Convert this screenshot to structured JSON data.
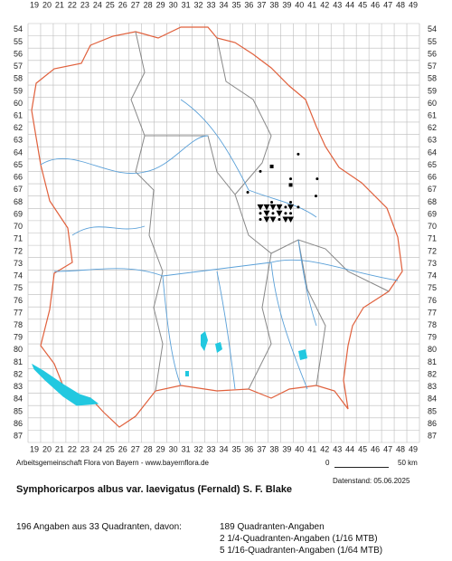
{
  "map": {
    "columns": [
      19,
      20,
      21,
      22,
      23,
      24,
      25,
      26,
      27,
      28,
      29,
      30,
      31,
      32,
      33,
      34,
      35,
      36,
      37,
      38,
      39,
      40,
      41,
      42,
      43,
      44,
      45,
      46,
      47,
      48,
      49
    ],
    "rows": [
      54,
      55,
      56,
      57,
      58,
      59,
      60,
      61,
      62,
      63,
      64,
      65,
      66,
      67,
      68,
      69,
      70,
      71,
      72,
      73,
      74,
      75,
      76,
      77,
      78,
      79,
      80,
      81,
      82,
      83,
      84,
      85,
      86,
      87
    ],
    "markers": [
      {
        "col": 39.9,
        "row": 64.1,
        "symbol": "dot"
      },
      {
        "col": 36.9,
        "row": 65.5,
        "symbol": "dot"
      },
      {
        "col": 37.8,
        "row": 65.1,
        "symbol": "square"
      },
      {
        "col": 39.3,
        "row": 66.1,
        "symbol": "dot"
      },
      {
        "col": 39.3,
        "row": 66.6,
        "symbol": "square"
      },
      {
        "col": 41.4,
        "row": 66.1,
        "symbol": "dot"
      },
      {
        "col": 35.9,
        "row": 67.2,
        "symbol": "dot"
      },
      {
        "col": 41.3,
        "row": 67.5,
        "symbol": "dot"
      },
      {
        "col": 37.8,
        "row": 68.0,
        "symbol": "dot"
      },
      {
        "col": 39.3,
        "row": 68.0,
        "symbol": "dot"
      },
      {
        "col": 36.9,
        "row": 68.4,
        "symbol": "triangle"
      },
      {
        "col": 37.4,
        "row": 68.4,
        "symbol": "triangle"
      },
      {
        "col": 37.9,
        "row": 68.4,
        "symbol": "triangle"
      },
      {
        "col": 38.4,
        "row": 68.4,
        "symbol": "triangle"
      },
      {
        "col": 38.9,
        "row": 68.4,
        "symbol": "dot"
      },
      {
        "col": 39.3,
        "row": 68.4,
        "symbol": "triangle"
      },
      {
        "col": 39.9,
        "row": 68.4,
        "symbol": "dot"
      },
      {
        "col": 36.9,
        "row": 68.9,
        "symbol": "dot"
      },
      {
        "col": 37.4,
        "row": 68.9,
        "symbol": "triangle"
      },
      {
        "col": 37.9,
        "row": 68.9,
        "symbol": "dot"
      },
      {
        "col": 38.4,
        "row": 68.9,
        "symbol": "triangle"
      },
      {
        "col": 38.9,
        "row": 68.9,
        "symbol": "dot"
      },
      {
        "col": 39.3,
        "row": 68.9,
        "symbol": "dot"
      },
      {
        "col": 36.9,
        "row": 69.4,
        "symbol": "dot"
      },
      {
        "col": 37.4,
        "row": 69.4,
        "symbol": "triangle"
      },
      {
        "col": 37.9,
        "row": 69.4,
        "symbol": "triangle"
      },
      {
        "col": 38.4,
        "row": 69.4,
        "symbol": "dot"
      },
      {
        "col": 38.9,
        "row": 69.4,
        "symbol": "triangle"
      },
      {
        "col": 39.3,
        "row": 69.4,
        "symbol": "triangle"
      }
    ]
  },
  "footer": {
    "credit": "Arbeitsgemeinschaft Flora von Bayern - www.bayernflora.de",
    "scale_start": "0",
    "scale_end": "50 km",
    "date": "Datenstand: 05.06.2025"
  },
  "title": "Symphoricarpos albus var. laevigatus (Fernald) S. F. Blake",
  "summary": {
    "total": "196 Angaben aus 33 Quadranten, davon:",
    "lines": [
      "189 Quadranten-Angaben",
      "2 1/4-Quadranten-Angaben (1/16 MTB)",
      "5 1/16-Quadranten-Angaben (1/64 MTB)"
    ]
  }
}
